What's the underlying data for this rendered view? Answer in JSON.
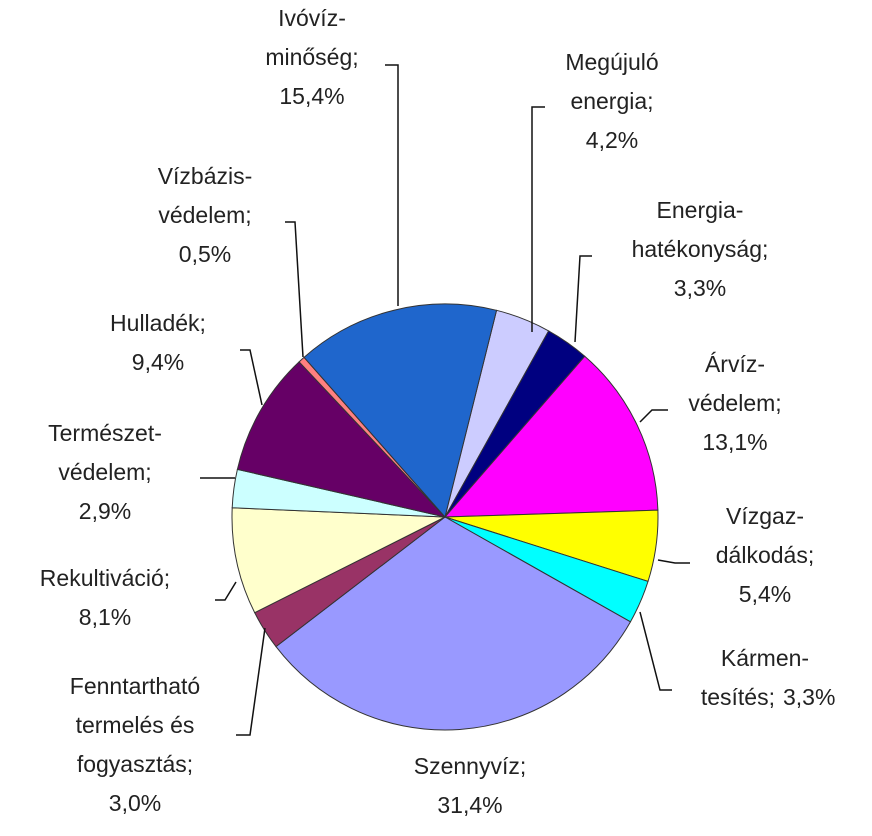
{
  "chart_data": {
    "type": "pie",
    "categories": [
      [
        "Megújuló",
        "energia;"
      ],
      [
        "Energia-",
        "hatékonyság;"
      ],
      [
        "Árvíz-",
        "védelem;"
      ],
      [
        "Vízgaz-",
        "dálkodás;"
      ],
      [
        "Kármen-",
        "tesítés;"
      ],
      [
        "Szennyvíz;"
      ],
      [
        "Fenntartható",
        "termelés és",
        "fogyasztás;"
      ],
      [
        "Rekultiváció;"
      ],
      [
        "Természet-",
        "védelem;"
      ],
      [
        "Hulladék;"
      ],
      [
        "Vízbázis-",
        "védelem;"
      ],
      [
        "Ivóvíz-",
        "minőség;"
      ]
    ],
    "values": [
      4.2,
      3.3,
      13.1,
      5.4,
      3.3,
      31.4,
      3.0,
      8.1,
      2.9,
      9.4,
      0.5,
      15.4
    ],
    "value_labels": [
      "4,2%",
      "3,3%",
      "13,1%",
      "5,4%",
      "3,3%",
      "31,4%",
      "3,0%",
      "8,1%",
      "2,9%",
      "9,4%",
      "0,5%",
      "15,4%"
    ],
    "colors": [
      "#ccccff",
      "#000080",
      "#ff00ff",
      "#ffff00",
      "#00ffff",
      "#9999ff",
      "#993366",
      "#ffffcc",
      "#ccffff",
      "#660066",
      "#ff8080",
      "#1f66cc"
    ]
  }
}
